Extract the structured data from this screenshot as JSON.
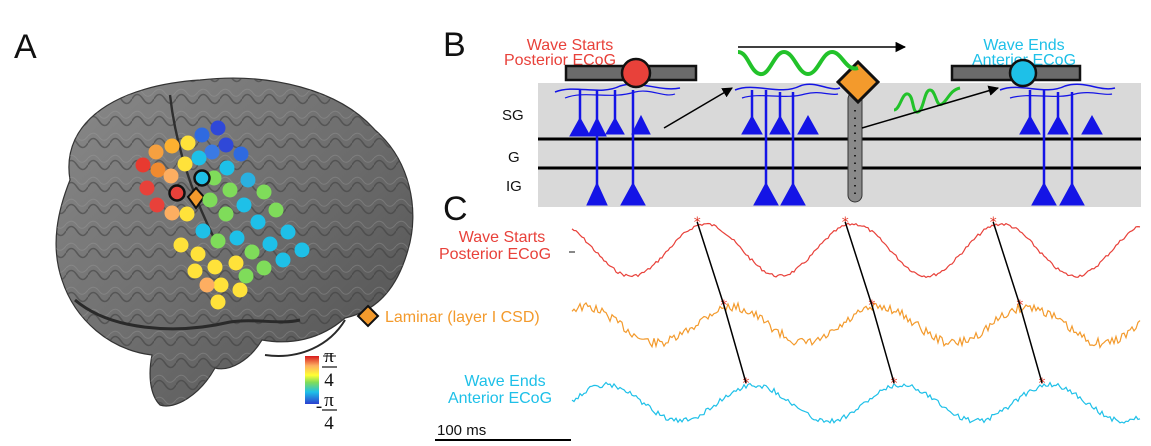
{
  "panels": {
    "a": "A",
    "b": "B",
    "c": "C"
  },
  "panel_b": {
    "wave_starts": [
      "Wave Starts",
      "Posterior ECoG"
    ],
    "wave_ends": [
      "Wave Ends",
      "Anterior ECoG"
    ],
    "layers": {
      "sg": "SG",
      "g": "G",
      "ig": "IG"
    }
  },
  "panel_c": {
    "trace_labels": {
      "posterior": [
        "Wave Starts",
        "Posterior ECoG"
      ],
      "laminar": "Laminar (layer I CSD)",
      "anterior": [
        "Wave Ends",
        "Anterior ECoG"
      ]
    },
    "scale_bar": "100 ms"
  },
  "colorbar": {
    "top": {
      "num": "π",
      "den": "4"
    },
    "bottom": {
      "num": "π",
      "den": "4",
      "sign": "-"
    }
  },
  "colors": {
    "posterior": "#e8413a",
    "laminar": "#f39a2c",
    "anterior": "#1ec0e8",
    "neuron": "#1414e6",
    "wave": "#22c22a",
    "peak_marker": "#e03020"
  }
}
